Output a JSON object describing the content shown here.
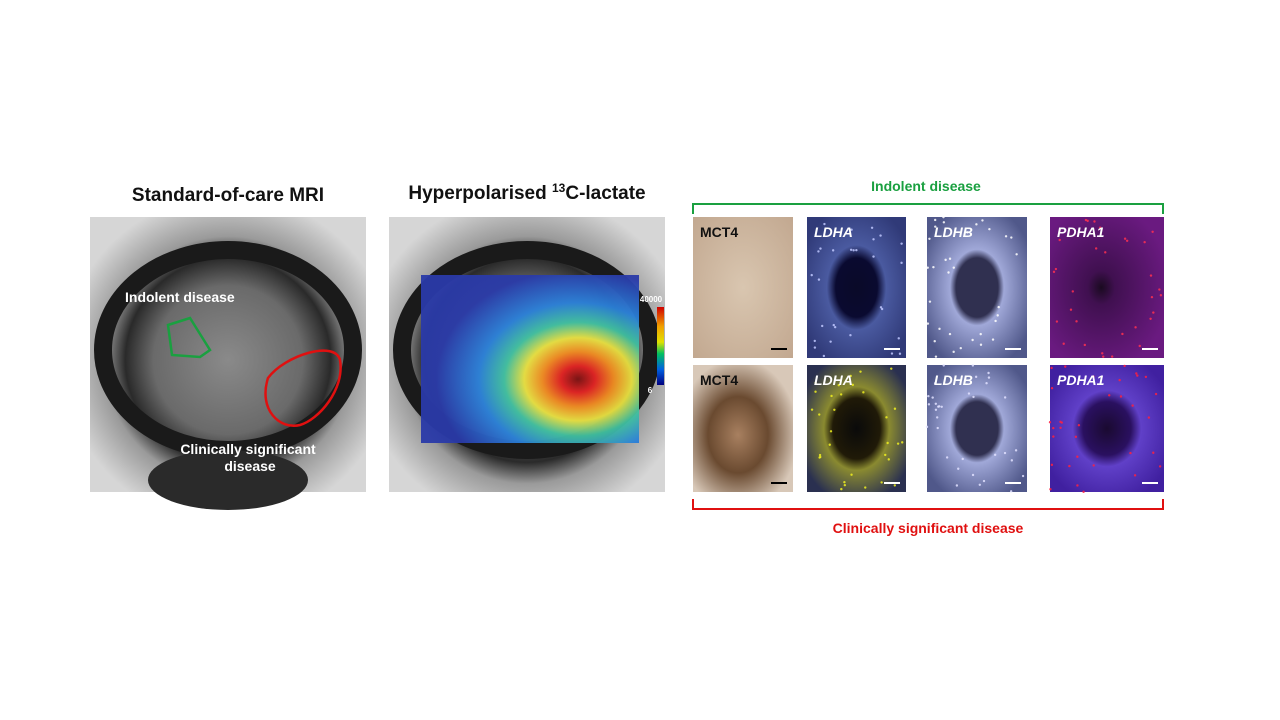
{
  "mri": {
    "title": "Standard-of-care MRI",
    "indolent_label": "Indolent disease",
    "significant_label": [
      "Clinically significant",
      "disease"
    ]
  },
  "lactate": {
    "title_prefix": "Hyperpolarised",
    "title_superscript": "13",
    "title_suffix": "C-lactate",
    "colorbar": {
      "max": 40000,
      "min": 6
    }
  },
  "histology": {
    "top_label": "Indolent disease",
    "bottom_label": "Clinically significant disease",
    "rows": [
      [
        "MCT4",
        "LDHA",
        "LDHB",
        "PDHA1"
      ],
      [
        "MCT4",
        "LDHA",
        "LDHB",
        "PDHA1"
      ]
    ]
  }
}
